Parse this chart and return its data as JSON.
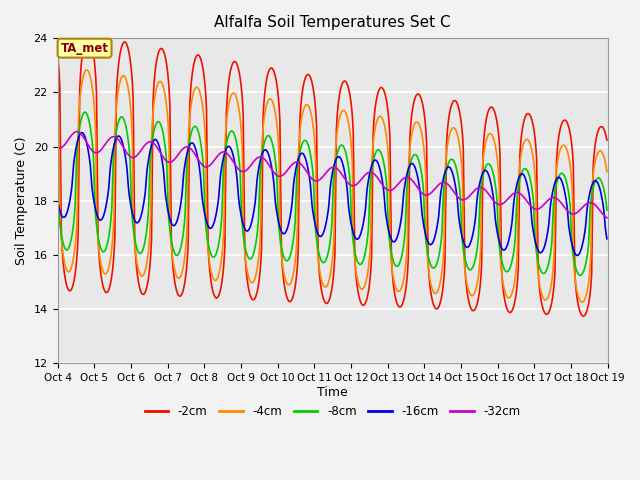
{
  "title": "Alfalfa Soil Temperatures Set C",
  "xlabel": "Time",
  "ylabel": "Soil Temperature (C)",
  "ylim": [
    12,
    24
  ],
  "yticks": [
    12,
    14,
    16,
    18,
    20,
    22,
    24
  ],
  "colors": {
    "-2cm": "#ee1100",
    "-4cm": "#ff8800",
    "-8cm": "#00cc00",
    "-16cm": "#0000dd",
    "-32cm": "#cc00cc"
  },
  "legend_labels": [
    "-2cm",
    "-4cm",
    "-8cm",
    "-16cm",
    "-32cm"
  ],
  "annotation_text": "TA_met",
  "annotation_color": "#880000",
  "annotation_bg": "#ffffaa",
  "plot_bg": "#e8e8e8",
  "fig_bg": "#f2f2f2",
  "n_days": 15,
  "start_day": 4,
  "ppd": 48,
  "mean_start": [
    19.5,
    19.2,
    18.8,
    19.0,
    20.3
  ],
  "mean_end": [
    17.2,
    17.0,
    17.0,
    17.3,
    17.6
  ],
  "amp_start": [
    4.8,
    3.8,
    2.6,
    1.6,
    0.35
  ],
  "amp_end": [
    3.5,
    2.8,
    1.8,
    1.4,
    0.25
  ],
  "phase_hrs": [
    0.0,
    0.8,
    2.0,
    4.0,
    7.0
  ],
  "peak_hour": 14,
  "sharpness": [
    3.5,
    2.8,
    2.0,
    1.4,
    1.0
  ],
  "line_width": 1.2
}
